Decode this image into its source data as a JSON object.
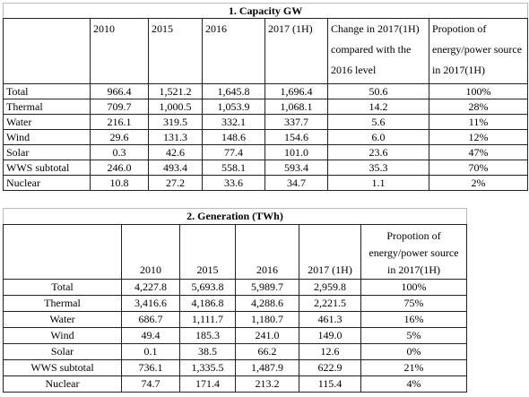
{
  "capacity": {
    "title": "1. Capacity GW",
    "columns": [
      "2010",
      "2015",
      "2016",
      "2017 (1H)",
      "Change in 2017(1H) compared with the 2016 level",
      "Propotion of energy/power source in 2017(1H)"
    ],
    "rows": [
      [
        "Total",
        "966.4",
        "1,521.2",
        "1,645.8",
        "1,696.4",
        "50.6",
        "100%"
      ],
      [
        "Thermal",
        "709.7",
        "1,000.5",
        "1,053.9",
        "1,068.1",
        "14.2",
        "28%"
      ],
      [
        "Water",
        "216.1",
        "319.5",
        "332.1",
        "337.7",
        "5.6",
        "11%"
      ],
      [
        "Wind",
        "29.6",
        "131.3",
        "148.6",
        "154.6",
        "6.0",
        "12%"
      ],
      [
        "Solar",
        "0.3",
        "42.6",
        "77.4",
        "101.0",
        "23.6",
        "47%"
      ],
      [
        "WWS subtotal",
        "246.0",
        "493.4",
        "558.1",
        "593.4",
        "35.3",
        "70%"
      ],
      [
        "Nuclear",
        "10.8",
        "27.2",
        "33.6",
        "34.7",
        "1.1",
        "2%"
      ]
    ]
  },
  "generation": {
    "title": "2. Generation (TWh)",
    "columns": [
      "2010",
      "2015",
      "2016",
      "2017 (1H)",
      "Propotion of energy/power source in 2017(1H)"
    ],
    "rows": [
      [
        "Total",
        "4,227.8",
        "5,693.8",
        "5,989.7",
        "2,959.8",
        "100%"
      ],
      [
        "Thermal",
        "3,416.6",
        "4,186.8",
        "4,288.6",
        "2,221.5",
        "75%"
      ],
      [
        "Water",
        "686.7",
        "1,111.7",
        "1,180.7",
        "461.3",
        "16%"
      ],
      [
        "Wind",
        "49.4",
        "185.3",
        "241.0",
        "149.0",
        "5%"
      ],
      [
        "Solar",
        "0.1",
        "38.5",
        "66.2",
        "12.6",
        "0%"
      ],
      [
        "WWS subtotal",
        "736.1",
        "1,335.5",
        "1,487.9",
        "622.9",
        "21%"
      ],
      [
        "Nuclear",
        "74.7",
        "171.4",
        "213.2",
        "115.4",
        "4%"
      ]
    ]
  }
}
